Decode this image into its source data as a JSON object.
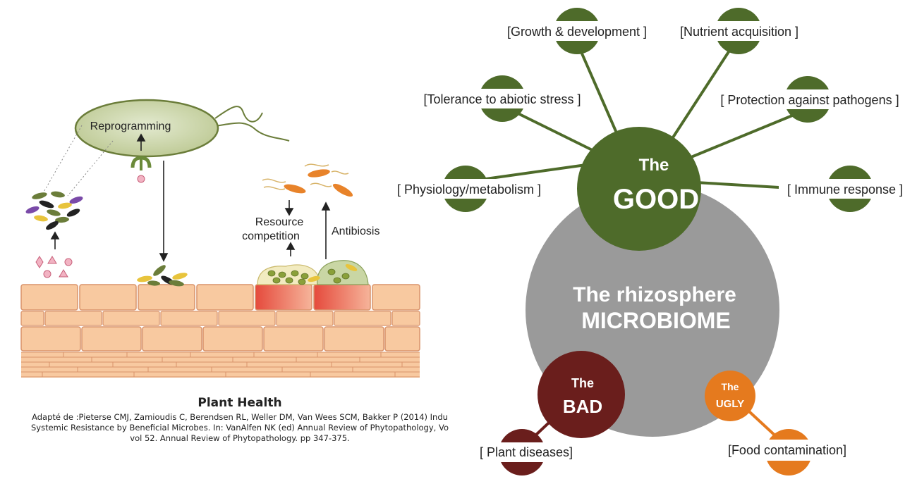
{
  "left_diagram": {
    "bacterium_label": "Reprogramming",
    "resource_label_line1": "Resource",
    "resource_label_line2": "competition",
    "antibiosis_label": "Antibiosis"
  },
  "caption": {
    "title": "Plant Health",
    "reference_lines": [
      "Adapté de  :Pieterse CMJ, Zamioudis C, Berendsen RL, Weller DM, Van Wees SCM, Bakker P (2014) Indu",
      "Systemic Resistance by Beneficial Microbes. In: VanAlfen NK (ed) Annual Review of Phytopathology, Vo",
      "vol 52. Annual Review of Phytopathology. pp 347-375."
    ]
  },
  "right_diagram": {
    "center_line1": "The rhizosphere",
    "center_line2": "MICROBIOME",
    "good": {
      "line1": "The",
      "line2": "GOOD",
      "benefits": [
        "[Growth & development ]",
        "[Nutrient acquisition ]",
        "[Tolerance to abiotic stress ]",
        "[ Protection against pathogens ]",
        "[ Physiology/metabolism ]",
        "[ Immune response ]"
      ]
    },
    "bad": {
      "line1": "The",
      "line2": "BAD",
      "item": "[ Plant diseases]"
    },
    "ugly": {
      "line1": "The",
      "line2": "UGLY",
      "item": "[Food contamination]"
    }
  },
  "colors": {
    "good_green": "#4e6b2a",
    "center_gray": "#9a9a9a",
    "bad_maroon": "#6a1e1c",
    "ugly_orange": "#e57a1e",
    "cell_fill": "#f8c9a0",
    "cell_stroke": "#d9936a",
    "bacterium_fill": "#c8d3a6"
  }
}
